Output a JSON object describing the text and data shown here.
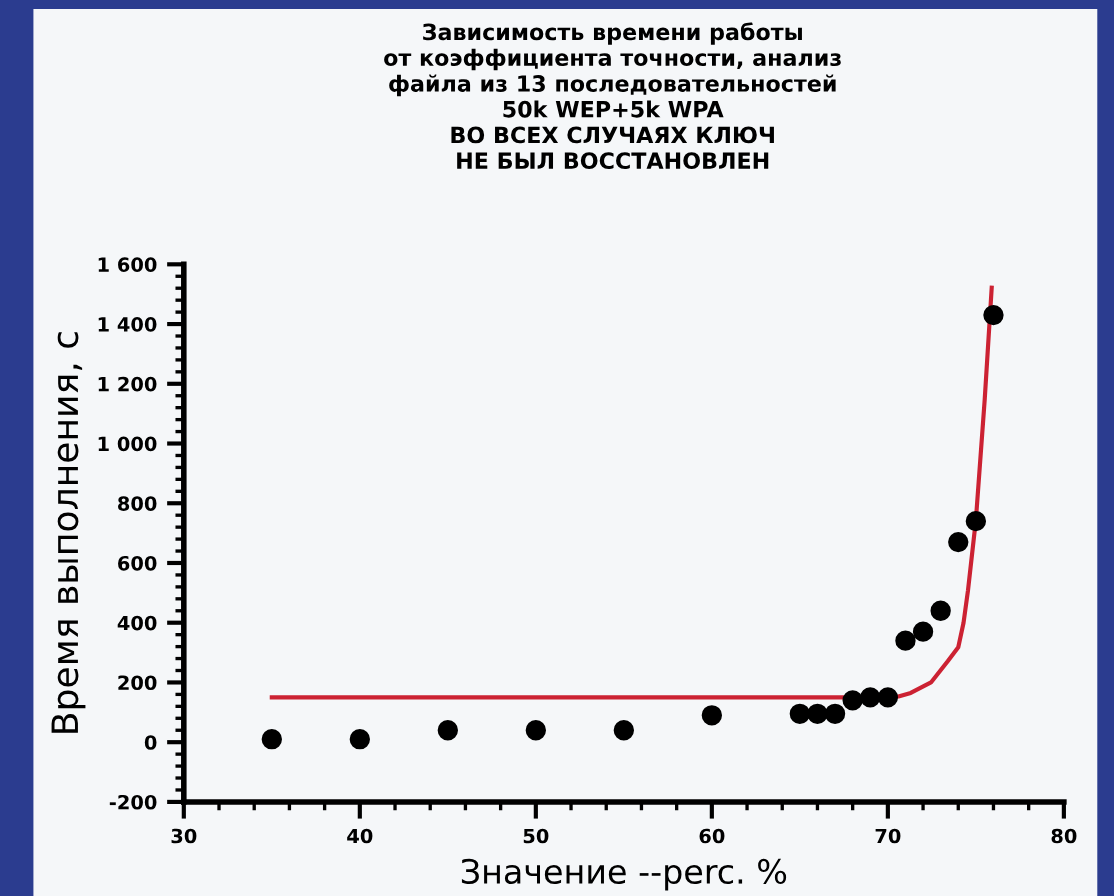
{
  "chart_data": {
    "type": "scatter",
    "title": "Зависимость времени работы\nот коэффициента точности, анализ\nфайла из 13 последовательностей\n50k WEP+5k WPA\nВО ВСЕХ СЛУЧАЯХ КЛЮЧ\nНЕ БЫЛ ВОССТАНОВЛЕН",
    "xlabel": "Значение --perc. %",
    "ylabel": "Время выполнения, с",
    "series": [
      {
        "color": "#000000",
        "marker": "circle",
        "x": [
          35,
          40,
          45,
          50,
          55,
          60,
          65,
          66,
          67,
          68,
          69,
          70,
          71,
          72,
          73,
          74,
          75,
          76
        ],
        "values": [
          10,
          10,
          40,
          40,
          40,
          90,
          95,
          95,
          95,
          140,
          150,
          150,
          340,
          370,
          440,
          670,
          740,
          1430
        ]
      },
      {
        "type": "line",
        "color": "#cc2233",
        "marker": "none",
        "line_style": "solid",
        "x": [
          35,
          70,
          70.6,
          71.3,
          72.45,
          73.4,
          74,
          74.3,
          74.55,
          75,
          75.5,
          75.9
        ],
        "values": [
          150,
          150,
          153,
          165,
          200,
          271,
          318,
          400,
          507,
          743,
          1145,
          1522
        ]
      }
    ],
    "xlim": [
      30,
      80
    ],
    "xticks": [
      30,
      40,
      50,
      60,
      70,
      80
    ],
    "ylim": [
      -200,
      1600
    ],
    "yticks": [
      -200,
      0,
      200,
      400,
      600,
      800,
      {
        "value": 1000,
        "label": "1 000"
      },
      {
        "value": 1200,
        "label": "1 200"
      },
      {
        "value": 1400,
        "label": "1 400"
      },
      {
        "value": 1600,
        "label": "1 600"
      }
    ],
    "grid": false,
    "legend": false
  }
}
